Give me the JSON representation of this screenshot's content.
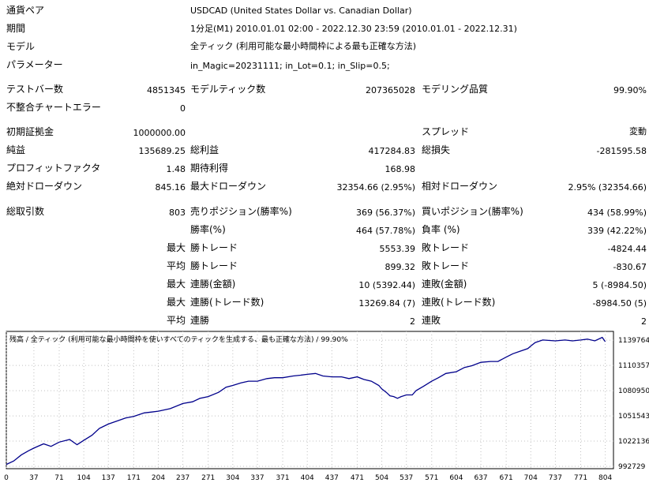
{
  "header": {
    "currency_pair_label": "通貨ペア",
    "currency_pair_value": "USDCAD (United States Dollar vs. Canadian Dollar)",
    "period_label": "期間",
    "period_value": "1分足(M1) 2010.01.01 02:00 - 2022.12.30 23:59 (2010.01.01 - 2022.12.31)",
    "model_label": "モデル",
    "model_value": "全ティック (利用可能な最小時間枠による最も正確な方法)",
    "params_label": "パラメーター",
    "params_value": "in_Magic=20231111; in_Lot=0.1; in_Slip=0.5;"
  },
  "stats": {
    "test_bars_label": "テストバー数",
    "test_bars_value": "4851345",
    "model_ticks_label": "モデルティック数",
    "model_ticks_value": "207365028",
    "model_quality_label": "モデリング品質",
    "model_quality_value": "99.90%",
    "mismatch_label": "不整合チャートエラー",
    "mismatch_value": "0",
    "initial_deposit_label": "初期証拠金",
    "initial_deposit_value": "1000000.00",
    "spread_label": "スプレッド",
    "spread_value": "変動",
    "net_profit_label": "純益",
    "net_profit_value": "135689.25",
    "gross_profit_label": "総利益",
    "gross_profit_value": "417284.83",
    "gross_loss_label": "総損失",
    "gross_loss_value": "-281595.58",
    "profit_factor_label": "プロフィットファクタ",
    "profit_factor_value": "1.48",
    "expected_payoff_label": "期待利得",
    "expected_payoff_value": "168.98",
    "abs_dd_label": "絶対ドローダウン",
    "abs_dd_value": "845.16",
    "max_dd_label": "最大ドローダウン",
    "max_dd_value": "32354.66 (2.95%)",
    "rel_dd_label": "相対ドローダウン",
    "rel_dd_value": "2.95% (32354.66)",
    "total_trades_label": "総取引数",
    "total_trades_value": "803",
    "short_pos_label": "売りポジション(勝率%)",
    "short_pos_value": "369 (56.37%)",
    "long_pos_label": "買いポジション(勝率%)",
    "long_pos_value": "434 (58.99%)",
    "win_rate_label": "勝率(%)",
    "win_rate_value": "464 (57.78%)",
    "loss_rate_label": "負率 (%)",
    "loss_rate_value": "339 (42.22%)",
    "max1_prefix": "最大",
    "largest_win_label": "勝トレード",
    "largest_win_value": "5553.39",
    "largest_loss_label": "敗トレード",
    "largest_loss_value": "-4824.44",
    "avg_prefix": "平均",
    "avg_win_label": "勝トレード",
    "avg_win_value": "899.32",
    "avg_loss_label": "敗トレード",
    "avg_loss_value": "-830.67",
    "max2_prefix": "最大",
    "max_consec_wins_label": "連勝(金額)",
    "max_consec_wins_value": "10 (5392.44)",
    "max_consec_losses_label": "連敗(金額)",
    "max_consec_losses_value": "5 (-8984.50)",
    "max3_prefix": "最大",
    "max_consec_profit_label": "連勝(トレード数)",
    "max_consec_profit_value": "13269.84 (7)",
    "max_consec_loss_label": "連敗(トレード数)",
    "max_consec_loss_value": "-8984.50 (5)",
    "avg2_prefix": "平均",
    "avg_consec_wins_label": "連勝",
    "avg_consec_wins_value": "2",
    "avg_consec_losses_label": "連敗",
    "avg_consec_losses_value": "2"
  },
  "chart_data": {
    "type": "line",
    "caption": "残高 / 全ティック (利用可能な最小時間枠を使いすべてのティックを生成する、最も正確な方法) / 99.90%",
    "line_color": "#00008b",
    "grid": true,
    "xlim": [
      0,
      815
    ],
    "ylim": [
      990000,
      1150000
    ],
    "x_ticks": [
      0,
      37,
      71,
      104,
      137,
      171,
      204,
      237,
      271,
      304,
      337,
      371,
      404,
      437,
      471,
      504,
      537,
      571,
      604,
      637,
      671,
      704,
      737,
      771,
      804
    ],
    "y_ticks": [
      992729,
      1022136,
      1051543,
      1080950,
      1110357,
      1139764
    ],
    "x": [
      0,
      10,
      20,
      30,
      37,
      50,
      60,
      71,
      85,
      95,
      104,
      115,
      125,
      137,
      150,
      160,
      171,
      185,
      195,
      204,
      220,
      237,
      250,
      260,
      271,
      285,
      295,
      304,
      315,
      325,
      337,
      350,
      360,
      371,
      385,
      395,
      404,
      415,
      425,
      437,
      450,
      460,
      471,
      480,
      490,
      500,
      504,
      510,
      515,
      520,
      525,
      530,
      537,
      545,
      550,
      560,
      571,
      580,
      590,
      604,
      615,
      625,
      637,
      650,
      660,
      671,
      680,
      690,
      700,
      704,
      710,
      720,
      737,
      750,
      760,
      771,
      780,
      790,
      800,
      804
    ],
    "y": [
      995000,
      999000,
      1006000,
      1011000,
      1014000,
      1019000,
      1016000,
      1021000,
      1024000,
      1018000,
      1023000,
      1029000,
      1037000,
      1042000,
      1046000,
      1049000,
      1051000,
      1055000,
      1056000,
      1057000,
      1060000,
      1066000,
      1068000,
      1072000,
      1074000,
      1079000,
      1085000,
      1087000,
      1090000,
      1092000,
      1092000,
      1095000,
      1096000,
      1096000,
      1098000,
      1099000,
      1100000,
      1101000,
      1098000,
      1097000,
      1097000,
      1095000,
      1097000,
      1094000,
      1092000,
      1087000,
      1083000,
      1079000,
      1075000,
      1074000,
      1072000,
      1074000,
      1076000,
      1076000,
      1081000,
      1086000,
      1092000,
      1096000,
      1101000,
      1103000,
      1108000,
      1110000,
      1114000,
      1115000,
      1115000,
      1120000,
      1124000,
      1127000,
      1130000,
      1133000,
      1137000,
      1140000,
      1139000,
      1140000,
      1139000,
      1140000,
      1141000,
      1139000,
      1143000,
      1138000
    ]
  }
}
